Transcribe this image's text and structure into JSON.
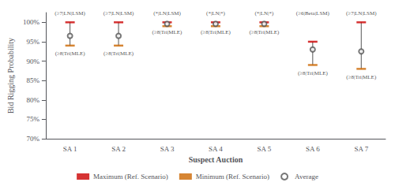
{
  "chart_data": {
    "type": "range",
    "categories": [
      "SA 1",
      "SA 2",
      "SA 3",
      "SA 4",
      "SA 5",
      "SA 6",
      "SA 7"
    ],
    "series": [
      {
        "name": "Maximum (Ref. Scenario)",
        "color": "#cc0000",
        "marker": "bar",
        "values": [
          100.0,
          100.0,
          100.0,
          100.0,
          100.0,
          95.0,
          100.0
        ]
      },
      {
        "name": "Minimum (Ref. Scenario)",
        "color": "#cc6600",
        "marker": "bar",
        "values": [
          94.0,
          94.0,
          99.0,
          99.0,
          99.0,
          89.0,
          88.0
        ]
      },
      {
        "name": "Average",
        "color": "#555555",
        "marker": "circle",
        "values": [
          96.5,
          96.5,
          99.6,
          99.6,
          99.6,
          93.0,
          92.5
        ]
      }
    ],
    "annotations": [
      {
        "x": "SA 1",
        "y": 101.3,
        "text": "(≥7|LN|LSM)",
        "position": "above"
      },
      {
        "x": "SA 2",
        "y": 101.3,
        "text": "(≥7|LN|LSM)",
        "position": "above"
      },
      {
        "x": "SA 3",
        "y": 101.3,
        "text": "(*|LN|LSM)",
        "position": "above"
      },
      {
        "x": "SA 4",
        "y": 101.3,
        "text": "(*|LN|*)",
        "position": "above"
      },
      {
        "x": "SA 5",
        "y": 101.3,
        "text": "(*|LN|*)",
        "position": "above"
      },
      {
        "x": "SA 6",
        "y": 101.3,
        "text": "(≥6|Beta|LSM)",
        "position": "above"
      },
      {
        "x": "SA 7",
        "y": 101.3,
        "text": "(≥7|LN|LSM)",
        "position": "above"
      },
      {
        "x": "SA 1",
        "y": 92.8,
        "text": "(≥8|Tri|MLE)",
        "position": "below"
      },
      {
        "x": "SA 2",
        "y": 92.8,
        "text": "(≥8|Tri|MLE)",
        "position": "below"
      },
      {
        "x": "SA 3",
        "y": 98.4,
        "text": "(≥8|Tri|MLE)",
        "position": "below"
      },
      {
        "x": "SA 4",
        "y": 98.4,
        "text": "(≥8|Tri|MLE)",
        "position": "below"
      },
      {
        "x": "SA 5",
        "y": 98.4,
        "text": "(≥8|Tri|MLE)",
        "position": "below"
      },
      {
        "x": "SA 6",
        "y": 87.8,
        "text": "(≥8|Tri|MLE)",
        "position": "below"
      },
      {
        "x": "SA 7",
        "y": 86.8,
        "text": "(≥8|Tri|MLE)",
        "position": "below"
      }
    ],
    "xlabel": "Suspect Auction",
    "ylabel": "Bid Rigging Probability",
    "ylim": [
      70,
      102.5
    ],
    "yticks": [
      {
        "value": 70,
        "label": "70%"
      },
      {
        "value": 75,
        "label": "75%"
      },
      {
        "value": 80,
        "label": "80%"
      },
      {
        "value": 85,
        "label": "85%"
      },
      {
        "value": 90,
        "label": "90%"
      },
      {
        "value": 95,
        "label": "95%"
      },
      {
        "value": 100,
        "label": "100%"
      }
    ],
    "grid": false,
    "legend": "bottom"
  }
}
